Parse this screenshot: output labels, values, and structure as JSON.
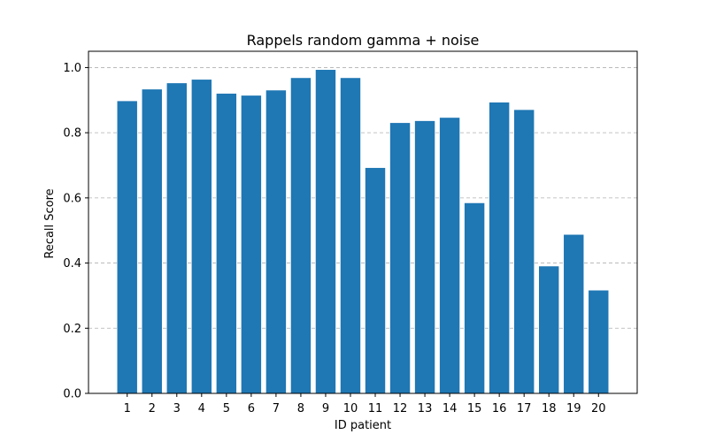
{
  "chart_data": {
    "type": "bar",
    "title": "Rappels random gamma + noise",
    "xlabel": "ID patient",
    "ylabel": "Recall Score",
    "categories": [
      "1",
      "2",
      "3",
      "4",
      "5",
      "6",
      "7",
      "8",
      "9",
      "10",
      "11",
      "12",
      "13",
      "14",
      "15",
      "16",
      "17",
      "18",
      "19",
      "20"
    ],
    "values": [
      0.897,
      0.933,
      0.952,
      0.963,
      0.92,
      0.914,
      0.93,
      0.968,
      0.993,
      0.968,
      0.692,
      0.83,
      0.836,
      0.846,
      0.584,
      0.893,
      0.87,
      0.39,
      0.487,
      0.316
    ],
    "ylim": [
      0,
      1.05
    ],
    "yticks": [
      "0.0",
      "0.2",
      "0.4",
      "0.6",
      "0.8",
      "1.0"
    ],
    "grid": "y-dashed",
    "bar_color": "#1f77b4",
    "grid_color": "#b0b0b0"
  }
}
